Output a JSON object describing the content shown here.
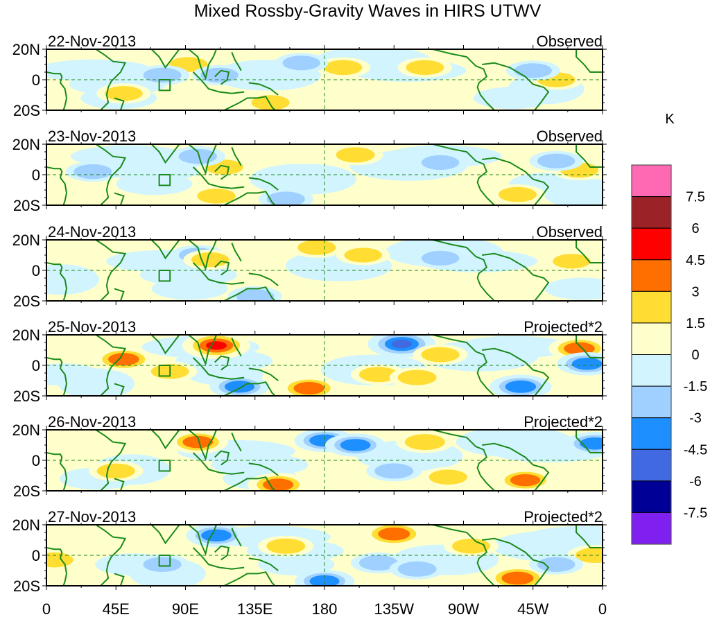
{
  "chart_data": {
    "type": "heatmap",
    "title": "Mixed Rossby-Gravity Waves in HIRS UTWV",
    "xlabel": "",
    "ylabel": "",
    "units_label": "K",
    "x_ticks": [
      "0",
      "45E",
      "90E",
      "135E",
      "180",
      "135W",
      "90W",
      "45W",
      "0"
    ],
    "x_range_deg_east": [
      0,
      360
    ],
    "y_ticks": [
      "20N",
      "0",
      "20S"
    ],
    "y_range_deg": [
      -20,
      20
    ],
    "grid": false,
    "reference_lines": [
      "equator (dashed)",
      "180 meridian (dashed)"
    ],
    "colorbar": {
      "placement": "right",
      "labels": [
        "7.5",
        "6",
        "4.5",
        "3",
        "1.5",
        "0",
        "-1.5",
        "-3",
        "-4.5",
        "-6",
        "-7.5"
      ],
      "levels": [
        7.5,
        6,
        4.5,
        3,
        1.5,
        0,
        -1.5,
        -3,
        -4.5,
        -6,
        -7.5
      ],
      "colors": [
        "#ff69b4",
        "#9b2226",
        "#ff0000",
        "#ff6f00",
        "#ffdd33",
        "#ffffcc",
        "#d1f4ff",
        "#a0d0ff",
        "#1e8fff",
        "#4169e1",
        "#000096",
        "#8020f0"
      ]
    },
    "panels": [
      {
        "date": "22-Nov-2013",
        "label": "Observed",
        "anomalies": [
          {
            "lon": 92,
            "lat": 10,
            "value": 1.8
          },
          {
            "lon": 145,
            "lat": -15,
            "value": 1.8
          },
          {
            "lon": 112,
            "lat": 3,
            "value": -1.7
          },
          {
            "lon": 75,
            "lat": 3,
            "value": -1.7
          },
          {
            "lon": 50,
            "lat": -9,
            "value": 1.7
          },
          {
            "lon": 192,
            "lat": 8,
            "value": 1.8
          },
          {
            "lon": 165,
            "lat": 11,
            "value": -1.6
          },
          {
            "lon": 330,
            "lat": 0,
            "value": 1.7
          },
          {
            "lon": 315,
            "lat": 6,
            "value": -1.6
          },
          {
            "lon": 245,
            "lat": 8,
            "value": 1.7
          }
        ]
      },
      {
        "date": "23-Nov-2013",
        "label": "Observed",
        "anomalies": [
          {
            "lon": 200,
            "lat": 13,
            "value": 2.0
          },
          {
            "lon": 115,
            "lat": 5,
            "value": 1.8
          },
          {
            "lon": 98,
            "lat": 12,
            "value": -1.8
          },
          {
            "lon": 155,
            "lat": -16,
            "value": -1.8
          },
          {
            "lon": 110,
            "lat": -14,
            "value": 1.8
          },
          {
            "lon": 30,
            "lat": 2,
            "value": -1.7
          },
          {
            "lon": 305,
            "lat": -13,
            "value": 1.8
          },
          {
            "lon": 345,
            "lat": 3,
            "value": 1.8
          },
          {
            "lon": 330,
            "lat": 9,
            "value": -1.6
          },
          {
            "lon": 255,
            "lat": 8,
            "value": -1.6
          }
        ]
      },
      {
        "date": "24-Nov-2013",
        "label": "Observed",
        "anomalies": [
          {
            "lon": 175,
            "lat": 15,
            "value": 1.8
          },
          {
            "lon": 205,
            "lat": 10,
            "value": 1.6
          },
          {
            "lon": 98,
            "lat": 10,
            "value": -1.7
          },
          {
            "lon": 135,
            "lat": -17,
            "value": -1.7
          },
          {
            "lon": 106,
            "lat": 7,
            "value": 1.6
          },
          {
            "lon": 255,
            "lat": 8,
            "value": -1.6
          },
          {
            "lon": 340,
            "lat": 6,
            "value": 1.6
          }
        ]
      },
      {
        "date": "25-Nov-2013",
        "label": "Projected*2",
        "anomalies": [
          {
            "lon": 110,
            "lat": 13,
            "value": 5.0
          },
          {
            "lon": 50,
            "lat": 4,
            "value": 3.5
          },
          {
            "lon": 230,
            "lat": 14,
            "value": -5.0
          },
          {
            "lon": 170,
            "lat": -15,
            "value": 3.5
          },
          {
            "lon": 345,
            "lat": 11,
            "value": 3.5
          },
          {
            "lon": 307,
            "lat": -14,
            "value": -3.5
          },
          {
            "lon": 350,
            "lat": 1,
            "value": -3.2
          },
          {
            "lon": 215,
            "lat": -6,
            "value": 2.0
          },
          {
            "lon": 240,
            "lat": -8,
            "value": 2.0
          },
          {
            "lon": 125,
            "lat": -14,
            "value": -3.0
          },
          {
            "lon": 255,
            "lat": 7,
            "value": 1.8
          },
          {
            "lon": 80,
            "lat": -4,
            "value": 1.7
          }
        ]
      },
      {
        "date": "26-Nov-2013",
        "label": "Projected*2",
        "anomalies": [
          {
            "lon": 98,
            "lat": 12,
            "value": 3.2
          },
          {
            "lon": 150,
            "lat": -16,
            "value": 3.4
          },
          {
            "lon": 180,
            "lat": 13,
            "value": -3.2
          },
          {
            "lon": 200,
            "lat": 10,
            "value": -3.2
          },
          {
            "lon": 245,
            "lat": 12,
            "value": 2.5
          },
          {
            "lon": 310,
            "lat": -13,
            "value": 3.0
          },
          {
            "lon": 45,
            "lat": -7,
            "value": 1.8
          },
          {
            "lon": 225,
            "lat": -7,
            "value": -2.0
          },
          {
            "lon": 260,
            "lat": -11,
            "value": 1.8
          },
          {
            "lon": 355,
            "lat": 11,
            "value": -3.2
          }
        ]
      },
      {
        "date": "27-Nov-2013",
        "label": "Projected*2",
        "anomalies": [
          {
            "lon": 225,
            "lat": 14,
            "value": 4.0
          },
          {
            "lon": 305,
            "lat": -15,
            "value": 4.0
          },
          {
            "lon": 110,
            "lat": 13,
            "value": -3.2
          },
          {
            "lon": 155,
            "lat": 6,
            "value": 2.0
          },
          {
            "lon": 215,
            "lat": -5,
            "value": -2.0
          },
          {
            "lon": 240,
            "lat": -9,
            "value": -2.0
          },
          {
            "lon": 180,
            "lat": -17,
            "value": -3.0
          },
          {
            "lon": 355,
            "lat": 0,
            "value": 2.0
          },
          {
            "lon": 5,
            "lat": -3,
            "value": 1.8
          },
          {
            "lon": 75,
            "lat": -6,
            "value": -1.8
          },
          {
            "lon": 330,
            "lat": -6,
            "value": -1.7
          },
          {
            "lon": 275,
            "lat": 6,
            "value": 1.8
          }
        ]
      }
    ]
  }
}
